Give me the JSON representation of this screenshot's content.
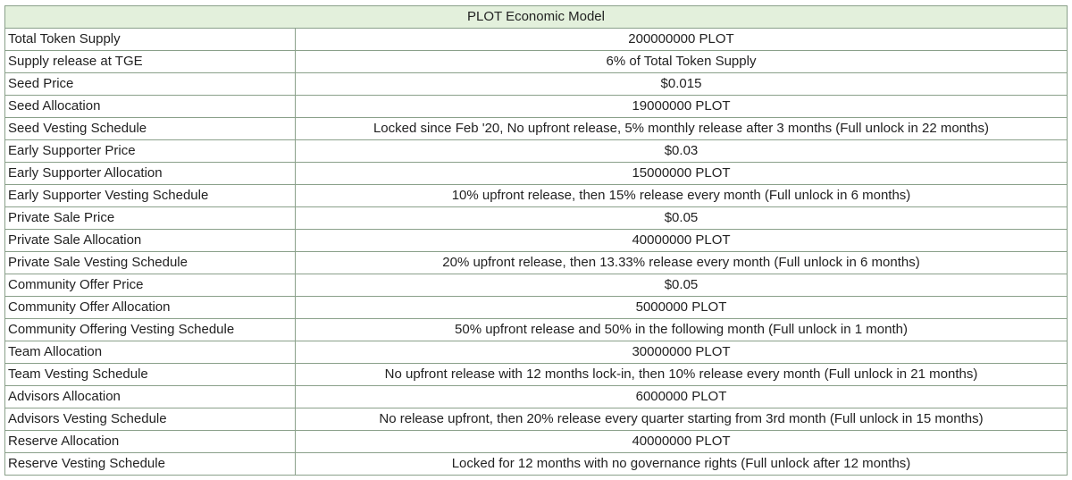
{
  "table": {
    "title": "PLOT Economic Model",
    "rows": [
      [
        "Total Token Supply",
        "200000000 PLOT"
      ],
      [
        "Supply release at TGE",
        "6% of Total Token Supply"
      ],
      [
        "Seed Price",
        "$0.015"
      ],
      [
        "Seed Allocation",
        "19000000 PLOT"
      ],
      [
        "Seed Vesting Schedule",
        "Locked since Feb '20, No upfront release, 5% monthly release after 3 months (Full unlock in 22 months)"
      ],
      [
        "Early Supporter Price",
        "$0.03"
      ],
      [
        "Early Supporter Allocation",
        "15000000 PLOT"
      ],
      [
        "Early Supporter Vesting Schedule",
        "10% upfront release, then 15% release every month (Full unlock in 6 months)"
      ],
      [
        "Private Sale Price",
        "$0.05"
      ],
      [
        "Private Sale Allocation",
        "40000000 PLOT"
      ],
      [
        "Private Sale Vesting Schedule",
        "20% upfront release, then 13.33% release every month (Full unlock in 6 months)"
      ],
      [
        "Community Offer Price",
        "$0.05"
      ],
      [
        "Community Offer Allocation",
        "5000000 PLOT"
      ],
      [
        "Community Offering Vesting Schedule",
        "50% upfront release and 50% in the following month (Full unlock in 1 month)"
      ],
      [
        "Team Allocation",
        "30000000 PLOT"
      ],
      [
        "Team Vesting Schedule",
        "No upfront release with 12 months lock-in, then 10% release every month (Full unlock in 21 months)"
      ],
      [
        "Advisors Allocation",
        "6000000 PLOT"
      ],
      [
        "Advisors Vesting Schedule",
        "No release upfront, then 20% release every quarter starting from 3rd month (Full unlock in 15 months)"
      ],
      [
        "Reserve Allocation",
        "40000000 PLOT"
      ],
      [
        "Reserve Vesting Schedule",
        "Locked for 12 months with no governance rights (Full unlock after 12 months)"
      ]
    ]
  }
}
